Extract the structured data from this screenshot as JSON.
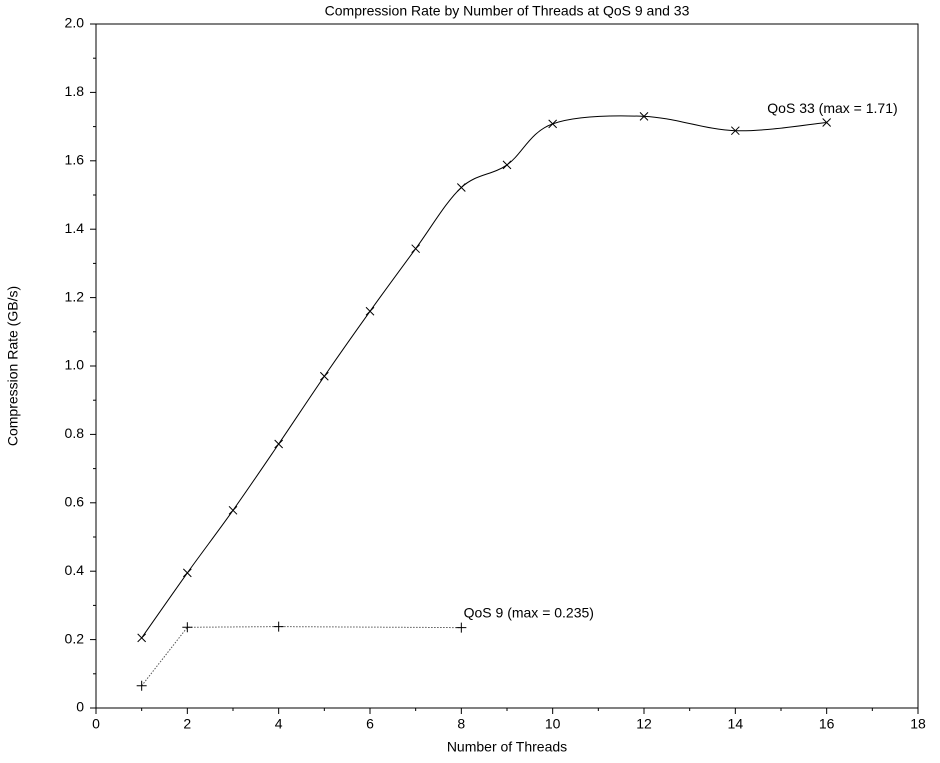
{
  "chart_data": {
    "type": "line",
    "title": "Compression Rate by Number of Threads at QoS 9 and 33",
    "xlabel": "Number of Threads",
    "ylabel": "Compression Rate (GB/s)",
    "series": [
      {
        "name": "QoS 33",
        "color": "#000000",
        "marker": "x",
        "smooth": true,
        "dash": false,
        "x": [
          1,
          2,
          3,
          4,
          5,
          6,
          7,
          8,
          9,
          10,
          12,
          14,
          16
        ],
        "values": [
          0.205,
          0.395,
          0.578,
          0.772,
          0.97,
          1.16,
          1.343,
          1.522,
          1.588,
          1.708,
          1.73,
          1.688,
          1.712
        ]
      },
      {
        "name": "QoS 9",
        "color": "#000000",
        "marker": "+",
        "smooth": false,
        "dash": true,
        "x": [
          1,
          2,
          4,
          8
        ],
        "values": [
          0.065,
          0.236,
          0.238,
          0.235
        ]
      }
    ],
    "annotations": [
      {
        "text": "QoS 33 (max = 1.71)",
        "x": 14.7,
        "y": 1.75
      },
      {
        "text": "QoS 9 (max = 0.235)",
        "x": 8.05,
        "y": 0.275
      }
    ],
    "xlim": [
      0,
      18
    ],
    "xticks": [
      0,
      2,
      4,
      6,
      8,
      10,
      12,
      14,
      16,
      18
    ],
    "xminorticks": [
      1,
      3,
      5,
      7,
      9,
      11,
      13,
      15,
      17
    ],
    "ylim": [
      0,
      2.0
    ],
    "yticks": [
      0,
      0.2,
      0.4,
      0.6,
      0.8,
      {
        "value": 1.0,
        "label": "1.0"
      },
      1.2,
      1.4,
      1.6,
      1.8,
      {
        "value": 2.0,
        "label": "2.0"
      }
    ],
    "yminorticks": [
      0.1,
      0.3,
      0.5,
      0.7,
      0.9,
      1.1,
      1.3,
      1.5,
      1.7,
      1.9
    ]
  }
}
